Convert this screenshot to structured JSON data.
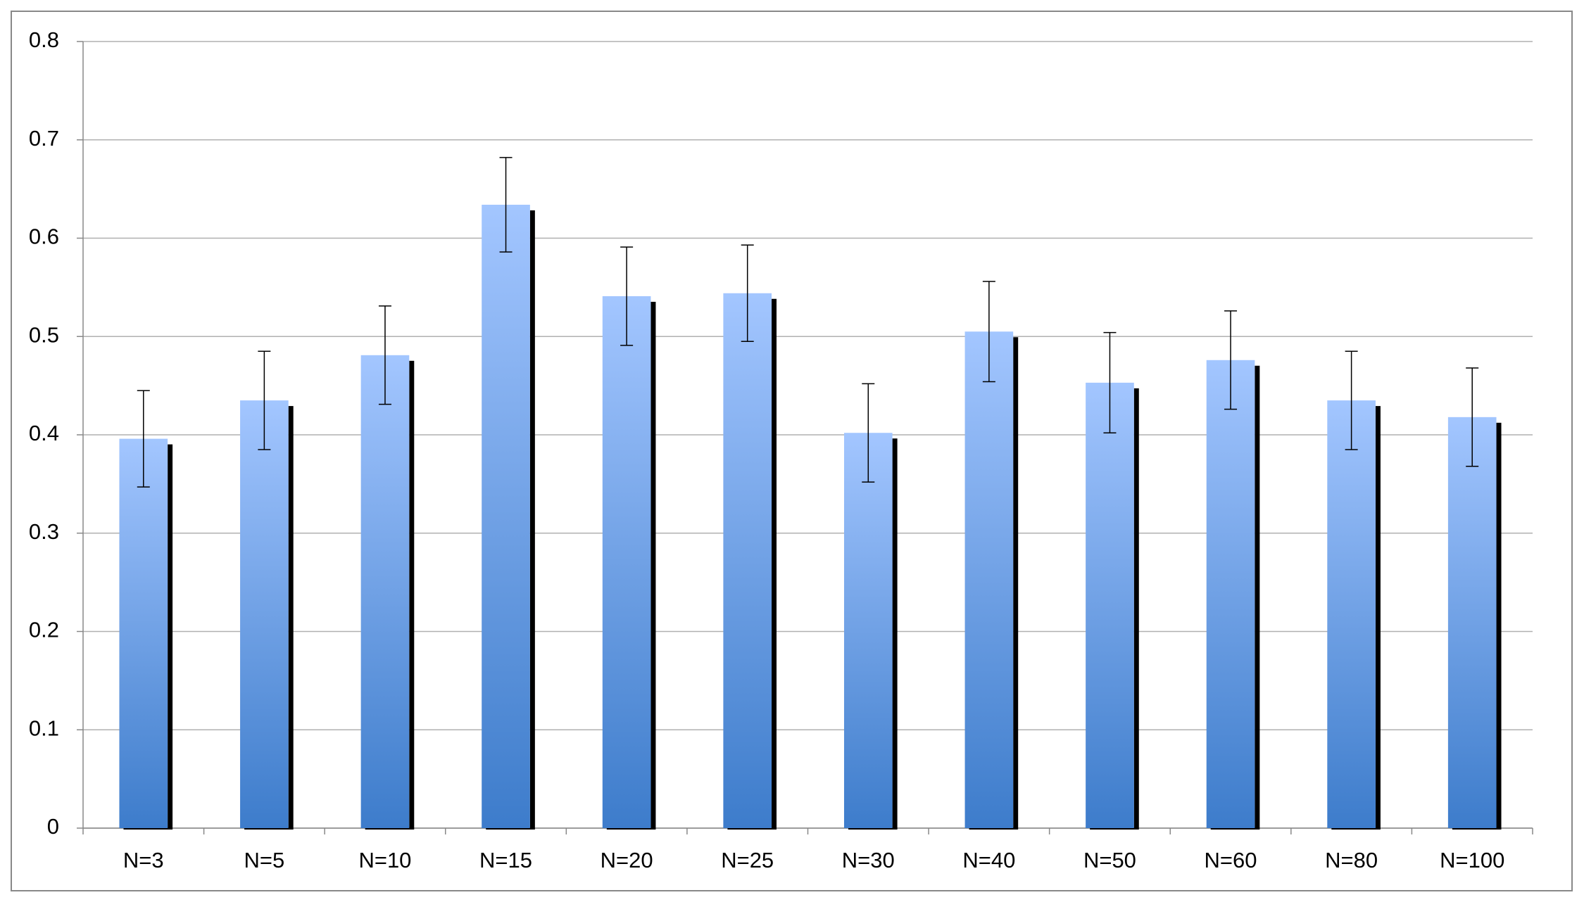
{
  "chart_data": {
    "type": "bar",
    "categories": [
      "N=3",
      "N=5",
      "N=10",
      "N=15",
      "N=20",
      "N=25",
      "N=30",
      "N=40",
      "N=50",
      "N=60",
      "N=80",
      "N=100"
    ],
    "values": [
      0.396,
      0.435,
      0.481,
      0.634,
      0.541,
      0.544,
      0.402,
      0.505,
      0.453,
      0.476,
      0.435,
      0.418
    ],
    "errors": [
      0.049,
      0.05,
      0.05,
      0.048,
      0.05,
      0.049,
      0.05,
      0.051,
      0.051,
      0.05,
      0.05,
      0.05
    ],
    "color": "#4a86d6",
    "ylim": [
      0,
      0.8
    ],
    "yticks": [
      0,
      0.1,
      0.2,
      0.3,
      0.4,
      0.5,
      0.6,
      0.7,
      0.8
    ],
    "grid": true
  }
}
